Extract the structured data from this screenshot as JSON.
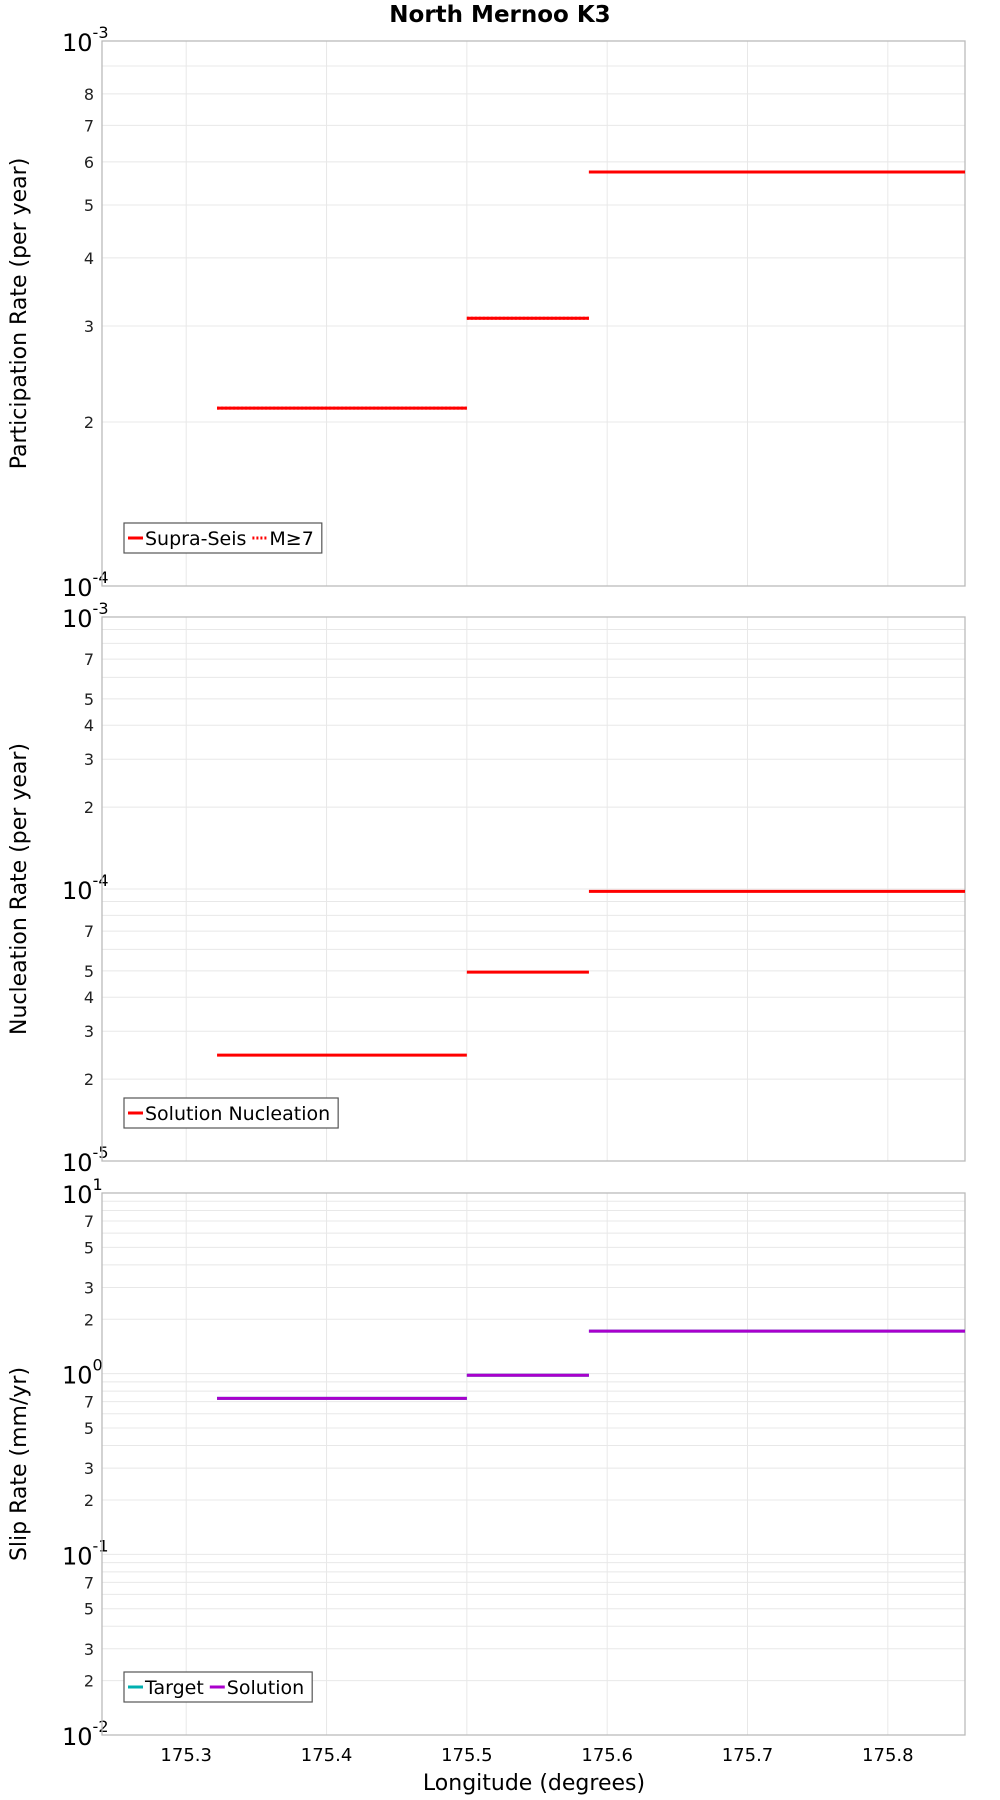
{
  "title": "North Mernoo K3",
  "colors": {
    "red": "#ff0000",
    "purple": "#aa00cc",
    "teal": "#00b0b0",
    "grid": "#e8e8e8",
    "frame": "#bbbbbb"
  },
  "chart_data": [
    {
      "type": "line",
      "title": "North Mernoo K3",
      "xlabel": "Longitude (degrees)",
      "ylabel": "Participation Rate (per year)",
      "yscale": "log",
      "ylim": [
        0.0001,
        0.001
      ],
      "xlim": [
        175.24,
        175.855
      ],
      "major_ticks": [
        {
          "exp": -4,
          "label": "10",
          "sup": "-4"
        },
        {
          "exp": -3,
          "label": "10",
          "sup": "-3"
        }
      ],
      "minor_ticks": [
        "2",
        "3",
        "4",
        "5",
        "6",
        "7",
        "8"
      ],
      "legend": {
        "position": "bottom-left",
        "entries": [
          {
            "label": "Supra-Seis",
            "style": "solid",
            "color_key": "red"
          },
          {
            "label": "M≥7",
            "style": "dotted",
            "color_key": "red"
          }
        ]
      },
      "series": [
        {
          "name": "Supra-Seis",
          "style": "solid",
          "color_key": "red",
          "segments": [
            [
              175.322,
              175.5,
              0.000212
            ],
            [
              175.5,
              175.587,
              0.00031
            ],
            [
              175.587,
              175.855,
              0.000575
            ]
          ]
        },
        {
          "name": "M≥7",
          "style": "dotted",
          "color_key": "red",
          "segments": [
            [
              175.322,
              175.5,
              0.000212
            ],
            [
              175.5,
              175.587,
              0.00031
            ],
            [
              175.587,
              175.855,
              0.000575
            ]
          ]
        }
      ]
    },
    {
      "type": "line",
      "xlabel": "Longitude (degrees)",
      "ylabel": "Nucleation Rate (per year)",
      "yscale": "log",
      "ylim": [
        1e-05,
        0.001
      ],
      "xlim": [
        175.24,
        175.855
      ],
      "major_ticks": [
        {
          "exp": -5,
          "label": "10",
          "sup": "-5"
        },
        {
          "exp": -4,
          "label": "10",
          "sup": "-4"
        },
        {
          "exp": -3,
          "label": "10",
          "sup": "-3"
        }
      ],
      "minor_ticks": [
        "2",
        "3",
        "4",
        "5",
        "7"
      ],
      "legend": {
        "position": "bottom-left",
        "entries": [
          {
            "label": "Solution Nucleation",
            "style": "solid",
            "color_key": "red"
          }
        ]
      },
      "series": [
        {
          "name": "Solution Nucleation",
          "style": "solid",
          "color_key": "red",
          "segments": [
            [
              175.322,
              175.5,
              2.45e-05
            ],
            [
              175.5,
              175.587,
              4.95e-05
            ],
            [
              175.587,
              175.855,
              9.8e-05
            ]
          ]
        }
      ]
    },
    {
      "type": "line",
      "xlabel": "Longitude (degrees)",
      "ylabel": "Slip Rate (mm/yr)",
      "yscale": "log",
      "ylim": [
        0.01,
        10
      ],
      "xlim": [
        175.24,
        175.855
      ],
      "major_ticks": [
        {
          "exp": -2,
          "label": "10",
          "sup": "-2"
        },
        {
          "exp": -1,
          "label": "10",
          "sup": "-1"
        },
        {
          "exp": 0,
          "label": "10",
          "sup": "0"
        },
        {
          "exp": 1,
          "label": "10",
          "sup": "1"
        }
      ],
      "minor_ticks": [
        "2",
        "3",
        "5",
        "7"
      ],
      "xticks": [
        "175.3",
        "175.4",
        "175.5",
        "175.6",
        "175.7",
        "175.8"
      ],
      "legend": {
        "position": "bottom-left",
        "entries": [
          {
            "label": "Target",
            "style": "solid",
            "color_key": "teal"
          },
          {
            "label": "Solution",
            "style": "solid",
            "color_key": "purple"
          }
        ]
      },
      "series": [
        {
          "name": "Target",
          "style": "solid",
          "color_key": "teal",
          "segments": [
            [
              175.322,
              175.5,
              0.73
            ],
            [
              175.5,
              175.587,
              0.98
            ],
            [
              175.587,
              175.855,
              1.72
            ]
          ]
        },
        {
          "name": "Solution",
          "style": "solid",
          "color_key": "purple",
          "segments": [
            [
              175.322,
              175.5,
              0.73
            ],
            [
              175.5,
              175.587,
              0.98
            ],
            [
              175.587,
              175.855,
              1.72
            ]
          ]
        }
      ]
    }
  ]
}
